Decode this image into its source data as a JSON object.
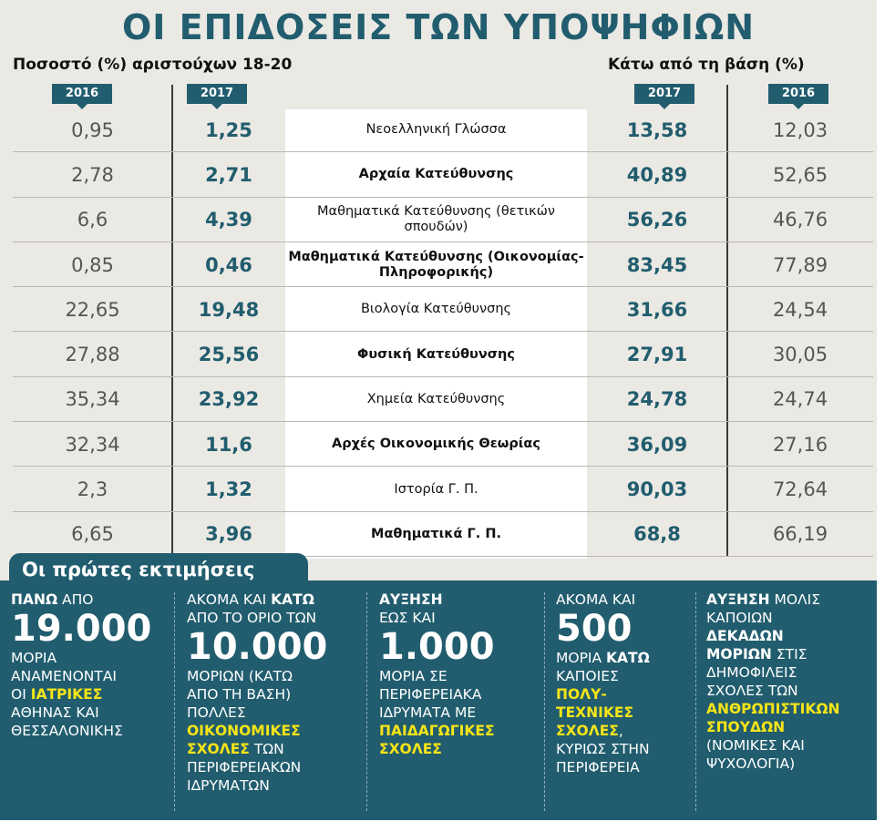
{
  "title": "ΟΙ ΕΠΙΔΟΣΕΙΣ ΤΩΝ ΥΠΟΨΗΦΙΩΝ",
  "left_header": "Ποσοστό (%) αριστούχων 18-20",
  "right_header": "Κάτω από τη βάση (%)",
  "years": {
    "left_a": "2016",
    "left_b": "2017",
    "right_a": "2017",
    "right_b": "2016"
  },
  "colors": {
    "accent": "#215d6e",
    "highlight": "#f5e417",
    "panel": "#ebe9e4"
  },
  "rows": [
    {
      "top16": "0,95",
      "top17": "1,25",
      "subject": "Νεοελληνική Γλώσσα",
      "bold": false,
      "below17": "13,58",
      "below16": "12,03"
    },
    {
      "top16": "2,78",
      "top17": "2,71",
      "subject": "Αρχαία Κατεύθυνσης",
      "bold": true,
      "below17": "40,89",
      "below16": "52,65"
    },
    {
      "top16": "6,6",
      "top17": "4,39",
      "subject": "Μαθηματικά Κατεύθυνσης (θετικών σπουδών)",
      "bold": false,
      "below17": "56,26",
      "below16": "46,76"
    },
    {
      "top16": "0,85",
      "top17": "0,46",
      "subject": "Μαθηματικά Κατεύθυνσης (Οικονομίας-Πληροφορικής)",
      "bold": true,
      "below17": "83,45",
      "below16": "77,89"
    },
    {
      "top16": "22,65",
      "top17": "19,48",
      "subject": "Βιολογία Κατεύθυνσης",
      "bold": false,
      "below17": "31,66",
      "below16": "24,54"
    },
    {
      "top16": "27,88",
      "top17": "25,56",
      "subject": "Φυσική Κατεύθυνσης",
      "bold": true,
      "below17": "27,91",
      "below16": "30,05"
    },
    {
      "top16": "35,34",
      "top17": "23,92",
      "subject": "Χημεία Κατεύθυνσης",
      "bold": false,
      "below17": "24,78",
      "below16": "24,74"
    },
    {
      "top16": "32,34",
      "top17": "11,6",
      "subject": "Αρχές Οικονομικής Θεωρίας",
      "bold": true,
      "below17": "36,09",
      "below16": "27,16"
    },
    {
      "top16": "2,3",
      "top17": "1,32",
      "subject": "Ιστορία Γ. Π.",
      "bold": false,
      "below17": "90,03",
      "below16": "72,64"
    },
    {
      "top16": "6,65",
      "top17": "3,96",
      "subject": "Μαθηματικά Γ. Π.",
      "bold": true,
      "below17": "68,8",
      "below16": "66,19"
    }
  ],
  "estimates_title": "Οι πρώτες εκτιμήσεις",
  "estimates": [
    {
      "line1_b": "ΠΑΝΩ",
      "line1": " ΑΠΟ",
      "big": "19.000",
      "l2": "ΜΟΡΙΑ",
      "l3": "ΑΝΑΜΕΝΟΝΤΑΙ",
      "l4": "ΟΙ ",
      "l4_y": "ΙΑΤΡΙΚΕΣ",
      "l5": "ΑΘΗΝΑΣ ΚΑΙ",
      "l6": "ΘΕΣΣΑΛΟΝΙΚΗΣ"
    },
    {
      "l1": "ΑΚΟΜΑ ΚΑΙ ",
      "l1_b": "ΚΑΤΩ",
      "l2": "ΑΠΟ ΤΟ ΟΡΙΟ ΤΩΝ",
      "big": "10.000",
      "l3": "ΜΟΡΙΩΝ (ΚΑΤΩ",
      "l4": "ΑΠΟ ΤΗ ΒΑΣΗ)",
      "l5": "ΠΟΛΛΕΣ",
      "l6_y": "ΟΙΚΟΝΟΜΙΚΕΣ",
      "l7_y": "ΣΧΟΛΕΣ",
      "l7": " ΤΩΝ",
      "l8": "ΠΕΡΙΦΕΡΕΙΑΚΩΝ",
      "l9": "ΙΔΡΥΜΑΤΩΝ"
    },
    {
      "l1_b": "ΑΥΞΗΣΗ",
      "l2": "ΕΩΣ ΚΑΙ",
      "big": "1.000",
      "l3": "ΜΟΡΙΑ ΣΕ",
      "l4": "ΠΕΡΙΦΕΡΕΙΑΚΑ",
      "l5": "ΙΔΡΥΜΑΤΑ ΜΕ",
      "l6_y": "ΠΑΙΔΑΓΩΓΙΚΕΣ",
      "l7_y": "ΣΧΟΛΕΣ"
    },
    {
      "l1": "ΑΚΟΜΑ ΚΑΙ",
      "big": "500",
      "l2": "ΜΟΡΙΑ ",
      "l2_b": "ΚΑΤΩ",
      "l3": "ΚΑΠΟΙΕΣ",
      "l4_y": "ΠΟΛΥ-",
      "l5_y": "ΤΕΧΝΙΚΕΣ",
      "l6_y": "ΣΧΟΛΕΣ",
      "l6": ",",
      "l7": "ΚΥΡΙΩΣ ΣΤΗΝ",
      "l8": "ΠΕΡΙΦΕΡΕΙΑ"
    },
    {
      "l1_b": "ΑΥΞΗΣΗ",
      "l1": " ΜΟΛΙΣ",
      "l2": "ΚΑΠΟΙΩΝ",
      "l3_b": "ΔΕΚΑΔΩΝ",
      "l4_b": "ΜΟΡΙΩΝ",
      "l4": " ΣΤΙΣ",
      "l5": "ΔΗΜΟΦΙΛΕΙΣ",
      "l6": "ΣΧΟΛΕΣ ΤΩΝ",
      "l7_y": "ΑΝΘΡΩΠΙΣΤΙΚΩΝ",
      "l8_y": "ΣΠΟΥΔΩΝ",
      "l9": "(ΝΟΜΙΚΕΣ ΚΑΙ",
      "l10": "ΨΥΧΟΛΟΓΙΑ)"
    }
  ]
}
